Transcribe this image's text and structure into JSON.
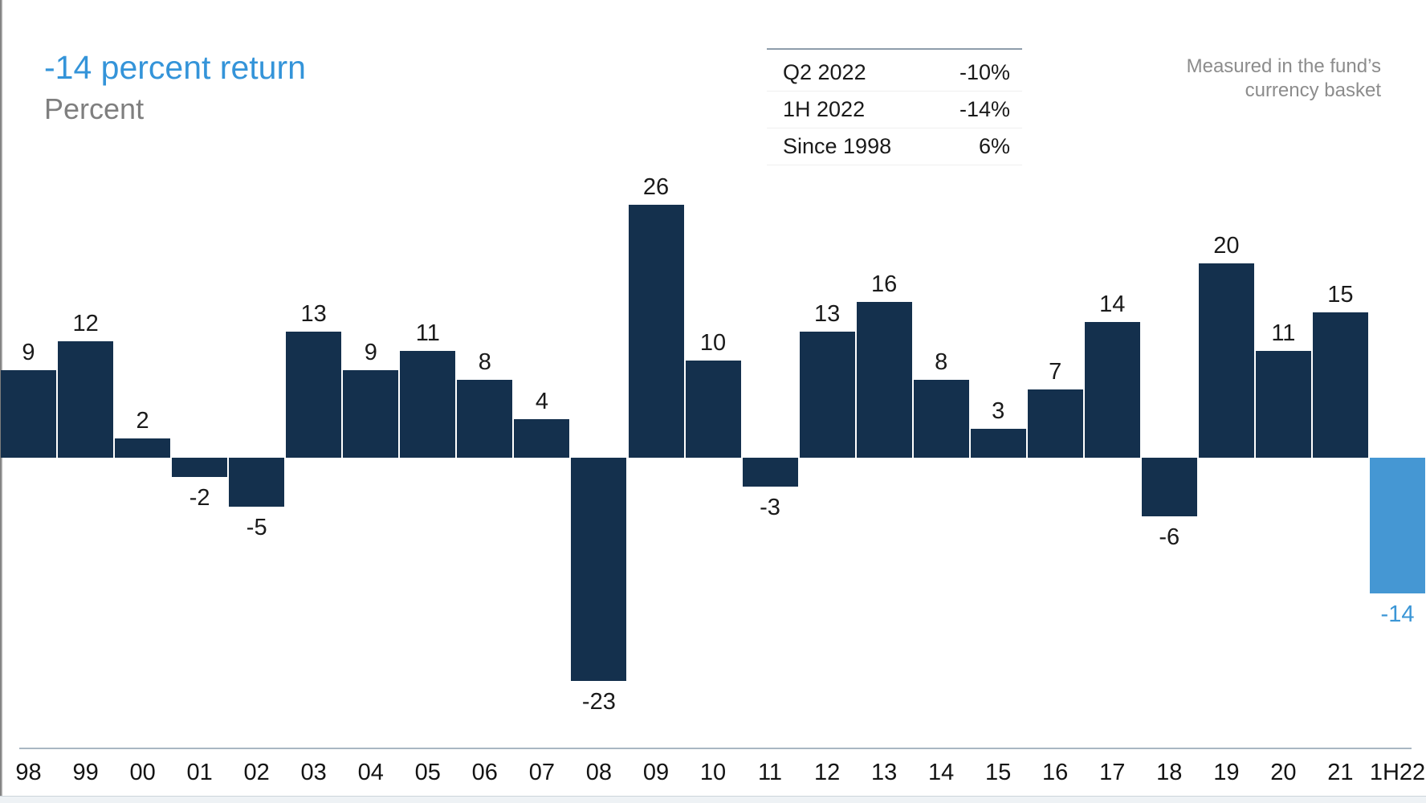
{
  "header": {
    "title": "-14 percent return",
    "subtitle": "Percent"
  },
  "summary_table": {
    "rows": [
      {
        "label": "Q2 2022",
        "value": "-10%"
      },
      {
        "label": "1H 2022",
        "value": "-14%"
      },
      {
        "label": "Since 1998",
        "value": "6%"
      }
    ]
  },
  "note": {
    "line1": "Measured in the fund’s",
    "line2": "currency basket"
  },
  "colors": {
    "bar_navy": "#14304d",
    "bar_highlight": "#4597d3",
    "highlight_label": "#3b96d6",
    "title_blue": "#3494d9",
    "subtitle_gray": "#7f7f7f",
    "note_gray": "#8c8c8c",
    "table_rule": "#8e9dab",
    "axis_line": "#a9b7c3",
    "label_dark": "#1a1a1a"
  },
  "chart_data": {
    "type": "bar",
    "categories": [
      "98",
      "99",
      "00",
      "01",
      "02",
      "03",
      "04",
      "05",
      "06",
      "07",
      "08",
      "09",
      "10",
      "11",
      "12",
      "13",
      "14",
      "15",
      "16",
      "17",
      "18",
      "19",
      "20",
      "21",
      "1H22"
    ],
    "values": [
      9,
      12,
      2,
      -2,
      -5,
      13,
      9,
      11,
      8,
      4,
      -23,
      26,
      10,
      -3,
      13,
      16,
      8,
      3,
      7,
      14,
      -6,
      20,
      11,
      15,
      -14
    ],
    "highlight_index": 24,
    "title": "-14 percent return",
    "xlabel": "",
    "ylabel": "Percent",
    "ylim": [
      -25,
      28
    ],
    "grid": false,
    "legend_position": "none",
    "data_labels": true
  }
}
